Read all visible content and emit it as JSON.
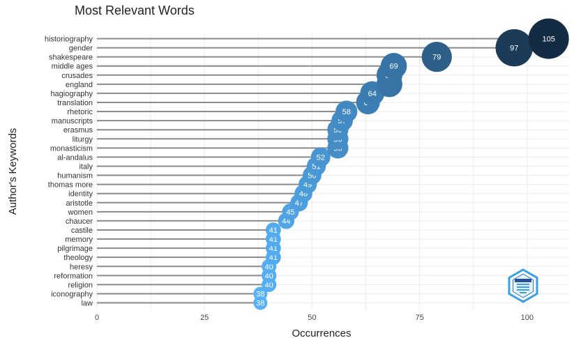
{
  "chart_data": {
    "type": "scatter",
    "title": "Most Relevant Words",
    "xlabel": "Occurrences",
    "ylabel": "Author's Keywords",
    "xlim": [
      -2,
      110
    ],
    "xticks": [
      0,
      25,
      50,
      75,
      100
    ],
    "grid": true,
    "legend": "none",
    "logo": "bibliometrix-logo",
    "categories": [
      "historiography",
      "gender",
      "shakespeare",
      "middle ages",
      "crusades",
      "england",
      "hagiography",
      "translation",
      "rhetoric",
      "manuscripts",
      "erasmus",
      "liturgy",
      "monasticism",
      "al-andalus",
      "italy",
      "humanism",
      "thomas more",
      "identity",
      "aristotle",
      "women",
      "chaucer",
      "castile",
      "memory",
      "pilgrimage",
      "theology",
      "heresy",
      "reformation",
      "religion",
      "iconography",
      "law"
    ],
    "values": [
      105,
      97,
      79,
      69,
      68,
      68,
      64,
      63,
      58,
      57,
      56,
      56,
      56,
      52,
      51,
      50,
      49,
      48,
      47,
      45,
      44,
      41,
      41,
      41,
      41,
      40,
      40,
      40,
      38,
      38
    ],
    "colors": {
      "low": "#56B1F7",
      "high": "#132B43"
    }
  }
}
